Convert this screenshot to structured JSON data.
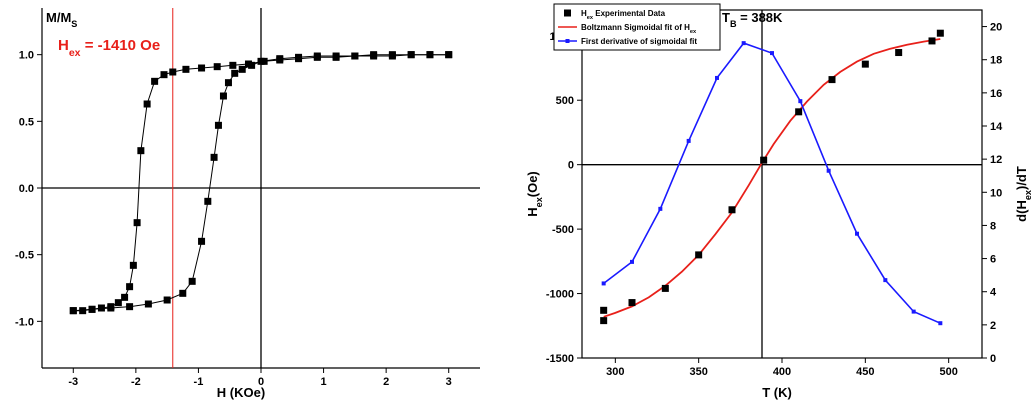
{
  "colors": {
    "data": "#000000",
    "fit": "#e8201a",
    "derivative": "#1a1aff",
    "annotation": "#e8201a",
    "right_axis_label": "#1a1aff"
  },
  "chart_data": [
    {
      "type": "scatter",
      "title": "",
      "ylabel_main": "M/M",
      "ylabel_sub": "S",
      "xlabel": "H (KOe)",
      "xlim": [
        -3.5,
        3.5
      ],
      "ylim": [
        -1.35,
        1.35
      ],
      "xticks": [
        -3,
        -2,
        -1,
        0,
        1,
        2,
        3
      ],
      "xtick_labels": [
        "-3",
        "-2",
        "-1",
        "0",
        "1",
        "2",
        "3"
      ],
      "yticks": [
        -1.0,
        -0.5,
        0.0,
        0.5,
        1.0
      ],
      "ytick_labels": [
        "-1.0",
        "-0.5",
        "0.0",
        "0.5",
        "1.0"
      ],
      "annotation": {
        "main": "H",
        "sub": "ex",
        "rest": "= -1410 Oe",
        "x_value": -1.41
      },
      "series": [
        {
          "branch": "descending",
          "x": [
            3.0,
            2.7,
            2.4,
            2.1,
            1.8,
            1.5,
            1.2,
            0.9,
            0.6,
            0.3,
            0.05,
            -0.2,
            -0.45,
            -0.7,
            -0.95,
            -1.2,
            -1.41,
            -1.55,
            -1.7,
            -1.82,
            -1.92,
            -1.98,
            -2.04,
            -2.1,
            -2.18,
            -2.28,
            -2.4,
            -2.55,
            -2.7,
            -2.85,
            -3.0
          ],
          "y": [
            1.0,
            1.0,
            1.0,
            0.99,
            0.99,
            0.99,
            0.98,
            0.98,
            0.97,
            0.96,
            0.95,
            0.93,
            0.92,
            0.91,
            0.9,
            0.89,
            0.87,
            0.85,
            0.8,
            0.63,
            0.28,
            -0.26,
            -0.58,
            -0.74,
            -0.82,
            -0.86,
            -0.89,
            -0.9,
            -0.91,
            -0.92,
            -0.92
          ]
        },
        {
          "branch": "ascending",
          "x": [
            -3.0,
            -2.7,
            -2.4,
            -2.1,
            -1.8,
            -1.5,
            -1.25,
            -1.1,
            -0.95,
            -0.85,
            -0.75,
            -0.68,
            -0.6,
            -0.52,
            -0.42,
            -0.3,
            -0.15,
            0.0,
            0.3,
            0.6,
            0.9,
            1.2,
            1.5,
            1.8,
            2.1,
            2.4,
            2.7,
            3.0
          ],
          "y": [
            -0.92,
            -0.91,
            -0.9,
            -0.89,
            -0.87,
            -0.84,
            -0.79,
            -0.7,
            -0.4,
            -0.1,
            0.23,
            0.47,
            0.69,
            0.79,
            0.86,
            0.89,
            0.92,
            0.95,
            0.97,
            0.98,
            0.99,
            0.99,
            0.99,
            1.0,
            1.0,
            1.0,
            1.0,
            1.0
          ]
        }
      ]
    },
    {
      "type": "line",
      "title_main": "T",
      "title_sub": "B",
      "title_rest": " = 388K",
      "xlabel": "T (K)",
      "ylabel_left_main": "H",
      "ylabel_left_sub": "ex",
      "ylabel_left_rest": "(Oe)",
      "ylabel_right_pre": "d(H",
      "ylabel_right_sub": "ex",
      "ylabel_right_rest": ")/dT",
      "xlim": [
        280,
        520
      ],
      "ylim_left": [
        -1500,
        1200
      ],
      "ylim_right": [
        0,
        21
      ],
      "xticks": [
        300,
        350,
        400,
        450,
        500
      ],
      "xtick_labels": [
        "300",
        "350",
        "400",
        "450",
        "500"
      ],
      "yticks_left": [
        -1500,
        -1000,
        -500,
        0,
        500,
        1000
      ],
      "ytick_labels_left": [
        "-1500",
        "-1000",
        "-500",
        "0",
        "500",
        "1000"
      ],
      "yticks_right": [
        0,
        2,
        4,
        6,
        8,
        10,
        12,
        14,
        16,
        18,
        20
      ],
      "ytick_labels_right": [
        "0",
        "2",
        "4",
        "6",
        "8",
        "10",
        "12",
        "14",
        "16",
        "18",
        "20"
      ],
      "vline_x": 388,
      "legend_position": "top-left",
      "legend": [
        {
          "pre": "H",
          "sub": "ex",
          "rest": " Experimental Data"
        },
        {
          "pre": "Boltzmann Sigmoidal fit of H",
          "sub": "ex",
          "rest": ""
        },
        {
          "pre": "First derivative of sigmoidal fit",
          "sub": "",
          "rest": ""
        }
      ],
      "series": [
        {
          "role": "experimental",
          "axis": "left",
          "x": [
            293,
            293,
            310,
            330,
            350,
            370,
            389,
            410,
            430,
            450,
            470,
            490,
            495
          ],
          "y": [
            -1130,
            -1210,
            -1070,
            -960,
            -700,
            -350,
            35,
            410,
            660,
            780,
            870,
            960,
            1020
          ]
        },
        {
          "role": "fit",
          "axis": "left",
          "x": [
            293,
            300,
            310,
            320,
            330,
            340,
            350,
            360,
            370,
            380,
            388,
            395,
            405,
            415,
            425,
            435,
            445,
            455,
            465,
            475,
            485,
            495
          ],
          "y": [
            -1180,
            -1150,
            -1100,
            -1030,
            -940,
            -830,
            -700,
            -540,
            -370,
            -160,
            15,
            160,
            340,
            490,
            620,
            720,
            800,
            860,
            900,
            930,
            955,
            975
          ]
        },
        {
          "role": "derivative",
          "axis": "right",
          "x": [
            293,
            310,
            327,
            344,
            361,
            377,
            394,
            411,
            428,
            445,
            462,
            479,
            495
          ],
          "y": [
            4.5,
            5.8,
            9.0,
            13.1,
            16.9,
            19.0,
            18.4,
            15.5,
            11.3,
            7.5,
            4.7,
            2.8,
            2.1
          ]
        }
      ]
    }
  ]
}
